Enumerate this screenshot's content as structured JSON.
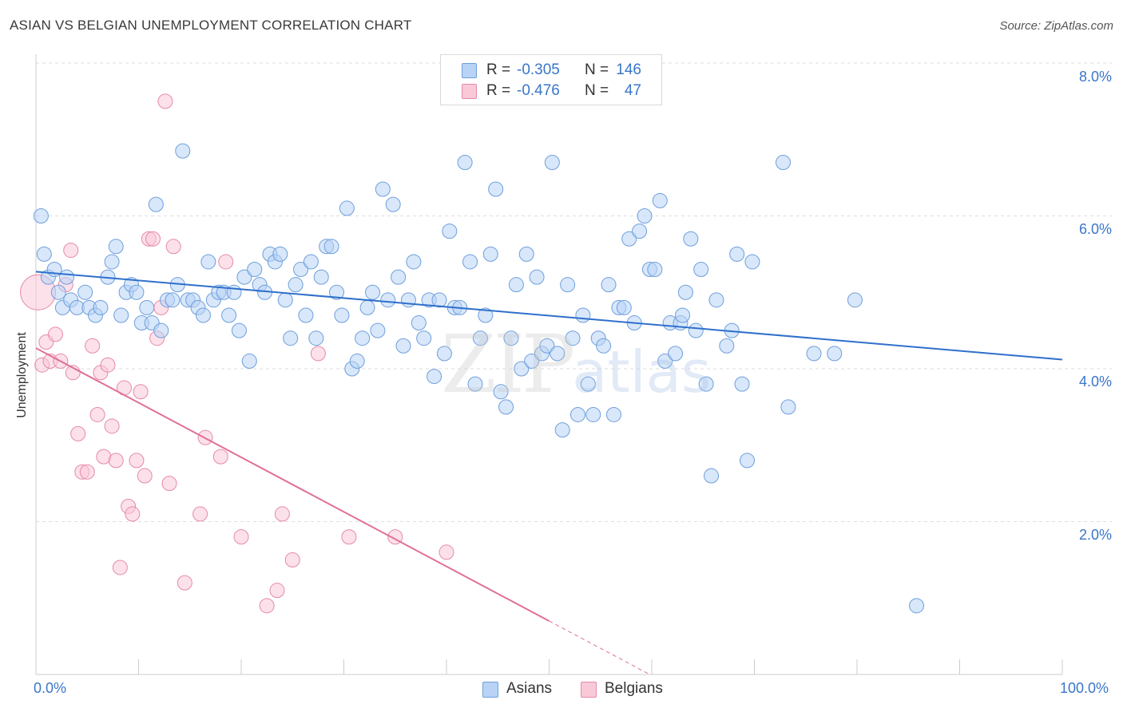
{
  "header": {
    "title": "ASIAN VS BELGIAN UNEMPLOYMENT CORRELATION CHART",
    "source": "Source: ZipAtlas.com"
  },
  "watermark": {
    "zip": "ZIP",
    "atlas": "atlas"
  },
  "legend_top": {
    "rows": [
      {
        "r_label": "R =",
        "r_value": "-0.305",
        "n_label": "N =",
        "n_value": "146"
      },
      {
        "r_label": "R =",
        "r_value": "-0.476",
        "n_label": "N =",
        "n_value": "47"
      }
    ]
  },
  "legend_bottom": {
    "series_a": "Asians",
    "series_b": "Belgians"
  },
  "axes": {
    "ylabel": "Unemployment",
    "x_min_label": "0.0%",
    "x_max_label": "100.0%",
    "y_tick_labels": [
      "8.0%",
      "6.0%",
      "4.0%",
      "2.0%"
    ]
  },
  "colors": {
    "asian_fill": "#b8d3f5",
    "asian_stroke": "#6e9fdc",
    "asian_line": "#2f6fcc",
    "belgian_fill": "#f9c9d8",
    "belgian_stroke": "#e58aa8",
    "belgian_line": "#e07098",
    "grid": "#dddddd",
    "tick_text": "#3a76c9"
  },
  "chart_data": {
    "type": "scatter",
    "title": "ASIAN VS BELGIAN UNEMPLOYMENT CORRELATION CHART",
    "xlabel": "",
    "ylabel": "Unemployment",
    "xlim": [
      0,
      100
    ],
    "ylim": [
      0,
      8.2
    ],
    "y_ticks": [
      2,
      4,
      6,
      8
    ],
    "grid": true,
    "legend": "top-center",
    "series": [
      {
        "name": "Asians",
        "r": -0.305,
        "n": 146,
        "trend": {
          "x": [
            0,
            100
          ],
          "y": [
            5.27,
            4.12
          ]
        },
        "points": [
          [
            0.5,
            6.0
          ],
          [
            0.8,
            5.5
          ],
          [
            1.2,
            5.2
          ],
          [
            1.8,
            5.3
          ],
          [
            2.2,
            5.0
          ],
          [
            2.6,
            4.8
          ],
          [
            3.0,
            5.2
          ],
          [
            3.4,
            4.9
          ],
          [
            4.0,
            4.8
          ],
          [
            4.8,
            5.0
          ],
          [
            5.2,
            4.8
          ],
          [
            5.8,
            4.7
          ],
          [
            6.3,
            4.8
          ],
          [
            7.0,
            5.2
          ],
          [
            7.4,
            5.4
          ],
          [
            7.8,
            5.6
          ],
          [
            8.3,
            4.7
          ],
          [
            8.8,
            5.0
          ],
          [
            9.3,
            5.1
          ],
          [
            9.8,
            5.0
          ],
          [
            10.3,
            4.6
          ],
          [
            10.8,
            4.8
          ],
          [
            11.3,
            4.6
          ],
          [
            11.7,
            6.15
          ],
          [
            12.2,
            4.5
          ],
          [
            12.8,
            4.9
          ],
          [
            13.3,
            4.9
          ],
          [
            13.8,
            5.1
          ],
          [
            14.3,
            6.85
          ],
          [
            14.8,
            4.9
          ],
          [
            15.3,
            4.9
          ],
          [
            15.8,
            4.8
          ],
          [
            16.3,
            4.7
          ],
          [
            16.8,
            5.4
          ],
          [
            17.3,
            4.9
          ],
          [
            17.8,
            5.0
          ],
          [
            18.3,
            5.0
          ],
          [
            18.8,
            4.7
          ],
          [
            19.3,
            5.0
          ],
          [
            19.8,
            4.5
          ],
          [
            20.3,
            5.2
          ],
          [
            20.8,
            4.1
          ],
          [
            21.3,
            5.3
          ],
          [
            21.8,
            5.1
          ],
          [
            22.3,
            5.0
          ],
          [
            22.8,
            5.5
          ],
          [
            23.3,
            5.4
          ],
          [
            23.8,
            5.5
          ],
          [
            24.3,
            4.9
          ],
          [
            24.8,
            4.4
          ],
          [
            25.3,
            5.1
          ],
          [
            25.8,
            5.3
          ],
          [
            26.3,
            4.7
          ],
          [
            26.8,
            5.4
          ],
          [
            27.3,
            4.4
          ],
          [
            27.8,
            5.2
          ],
          [
            28.3,
            5.6
          ],
          [
            28.8,
            5.6
          ],
          [
            29.3,
            5.0
          ],
          [
            29.8,
            4.7
          ],
          [
            30.3,
            6.1
          ],
          [
            30.8,
            4.0
          ],
          [
            31.3,
            4.1
          ],
          [
            31.8,
            4.4
          ],
          [
            32.3,
            4.8
          ],
          [
            32.8,
            5.0
          ],
          [
            33.3,
            4.5
          ],
          [
            33.8,
            6.35
          ],
          [
            34.3,
            4.9
          ],
          [
            34.8,
            6.15
          ],
          [
            35.3,
            5.2
          ],
          [
            35.8,
            4.3
          ],
          [
            36.3,
            4.9
          ],
          [
            36.8,
            5.4
          ],
          [
            37.3,
            4.6
          ],
          [
            37.8,
            4.4
          ],
          [
            38.3,
            4.9
          ],
          [
            38.8,
            3.9
          ],
          [
            39.3,
            4.9
          ],
          [
            39.8,
            4.2
          ],
          [
            40.3,
            5.8
          ],
          [
            40.8,
            4.8
          ],
          [
            41.3,
            4.8
          ],
          [
            41.8,
            6.7
          ],
          [
            42.3,
            5.4
          ],
          [
            42.8,
            3.8
          ],
          [
            43.3,
            4.4
          ],
          [
            43.8,
            4.7
          ],
          [
            44.3,
            5.5
          ],
          [
            44.8,
            6.35
          ],
          [
            45.3,
            3.7
          ],
          [
            45.8,
            3.5
          ],
          [
            46.3,
            4.4
          ],
          [
            46.8,
            5.1
          ],
          [
            47.3,
            4.0
          ],
          [
            47.8,
            5.5
          ],
          [
            48.3,
            4.1
          ],
          [
            48.8,
            5.2
          ],
          [
            49.3,
            4.2
          ],
          [
            49.8,
            4.3
          ],
          [
            50.3,
            6.7
          ],
          [
            50.8,
            4.2
          ],
          [
            51.3,
            3.2
          ],
          [
            51.8,
            5.1
          ],
          [
            52.3,
            4.4
          ],
          [
            52.8,
            3.4
          ],
          [
            53.3,
            4.7
          ],
          [
            53.8,
            3.8
          ],
          [
            54.3,
            3.4
          ],
          [
            54.8,
            4.4
          ],
          [
            55.3,
            4.3
          ],
          [
            55.8,
            5.1
          ],
          [
            56.3,
            3.4
          ],
          [
            56.8,
            4.8
          ],
          [
            57.3,
            4.8
          ],
          [
            57.8,
            5.7
          ],
          [
            58.3,
            4.6
          ],
          [
            58.8,
            5.8
          ],
          [
            59.3,
            6.0
          ],
          [
            59.8,
            5.3
          ],
          [
            60.3,
            5.3
          ],
          [
            60.8,
            6.2
          ],
          [
            61.3,
            4.1
          ],
          [
            61.8,
            4.6
          ],
          [
            62.3,
            4.2
          ],
          [
            62.8,
            4.6
          ],
          [
            63.3,
            5.0
          ],
          [
            63.8,
            5.7
          ],
          [
            64.3,
            4.5
          ],
          [
            64.8,
            5.3
          ],
          [
            65.3,
            3.8
          ],
          [
            65.8,
            2.6
          ],
          [
            66.3,
            4.9
          ],
          [
            67.3,
            4.3
          ],
          [
            67.8,
            4.5
          ],
          [
            68.3,
            5.5
          ],
          [
            68.8,
            3.8
          ],
          [
            69.3,
            2.8
          ],
          [
            69.8,
            5.4
          ],
          [
            72.8,
            6.7
          ],
          [
            73.3,
            3.5
          ],
          [
            75.8,
            4.2
          ],
          [
            77.8,
            4.2
          ],
          [
            79.8,
            4.9
          ],
          [
            85.8,
            0.9
          ],
          [
            63.0,
            4.7
          ]
        ]
      },
      {
        "name": "Belgians",
        "r": -0.476,
        "n": 47,
        "trend": {
          "x": [
            0,
            50
          ],
          "y": [
            4.27,
            0.7
          ]
        },
        "points": [
          [
            0.2,
            5.0
          ],
          [
            0.6,
            4.05
          ],
          [
            1.0,
            4.35
          ],
          [
            1.4,
            4.1
          ],
          [
            1.9,
            4.45
          ],
          [
            2.4,
            4.1
          ],
          [
            2.9,
            5.1
          ],
          [
            3.4,
            5.55
          ],
          [
            3.6,
            3.95
          ],
          [
            4.1,
            3.15
          ],
          [
            4.5,
            2.65
          ],
          [
            5.0,
            2.65
          ],
          [
            5.5,
            4.3
          ],
          [
            6.0,
            3.4
          ],
          [
            6.3,
            3.95
          ],
          [
            6.6,
            2.85
          ],
          [
            7.0,
            4.05
          ],
          [
            7.4,
            3.25
          ],
          [
            7.8,
            2.8
          ],
          [
            8.2,
            1.4
          ],
          [
            8.6,
            3.75
          ],
          [
            9.0,
            2.2
          ],
          [
            9.4,
            2.1
          ],
          [
            9.8,
            2.8
          ],
          [
            10.2,
            3.7
          ],
          [
            10.6,
            2.6
          ],
          [
            11.0,
            5.7
          ],
          [
            11.4,
            5.7
          ],
          [
            11.8,
            4.4
          ],
          [
            12.2,
            4.8
          ],
          [
            12.6,
            7.5
          ],
          [
            13.0,
            2.5
          ],
          [
            13.4,
            5.6
          ],
          [
            14.5,
            1.2
          ],
          [
            16.0,
            2.1
          ],
          [
            16.5,
            3.1
          ],
          [
            18.0,
            2.85
          ],
          [
            18.5,
            5.4
          ],
          [
            20.0,
            1.8
          ],
          [
            22.5,
            0.9
          ],
          [
            23.5,
            1.1
          ],
          [
            24.0,
            2.1
          ],
          [
            25.0,
            1.5
          ],
          [
            27.5,
            4.2
          ],
          [
            30.5,
            1.8
          ],
          [
            35.0,
            1.8
          ],
          [
            40.0,
            1.6
          ]
        ]
      }
    ]
  }
}
